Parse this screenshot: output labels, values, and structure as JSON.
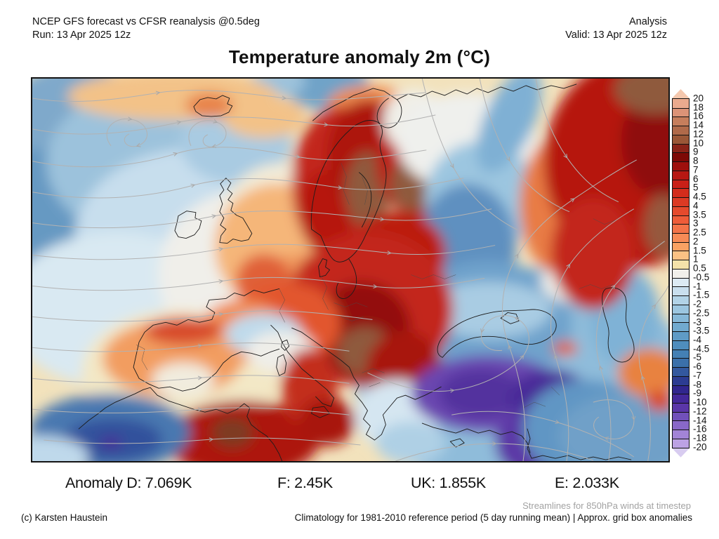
{
  "header": {
    "model_line": "NCEP GFS forecast vs CFSR reanalysis @0.5deg",
    "run_line": "Run: 13 Apr 2025 12z",
    "mode": "Analysis",
    "valid_line": "Valid: 13 Apr 2025 12z"
  },
  "title": "Temperature anomaly 2m (°C)",
  "anomaly_stats": [
    "Anomaly D: 7.069K",
    "F: 2.45K",
    "UK: 1.855K",
    "E: 2.033K"
  ],
  "colorbar": {
    "unit": "°C",
    "labels": [
      "20",
      "18",
      "16",
      "14",
      "12",
      "10",
      "9",
      "8",
      "7",
      "6",
      "5",
      "4.5",
      "4",
      "3.5",
      "3",
      "2.5",
      "2",
      "1.5",
      "1",
      "0.5",
      "-0.5",
      "-1",
      "-1.5",
      "-2",
      "-2.5",
      "-3",
      "-3.5",
      "-4",
      "-4.5",
      "-5",
      "-6",
      "-7",
      "-8",
      "-9",
      "-10",
      "-12",
      "-14",
      "-16",
      "-18",
      "-20"
    ],
    "segment_colors": [
      "#EBAA8E",
      "#DC9377",
      "#C67E5C",
      "#B06A4A",
      "#9A5737",
      "#8A2318",
      "#7D0906",
      "#9E100C",
      "#B71712",
      "#C92017",
      "#D32C1C",
      "#DC3A24",
      "#E54A2D",
      "#EE5C39",
      "#F37348",
      "#F78B56",
      "#FAA263",
      "#FBC184",
      "#F4E2AA",
      "#F1F0EB",
      "#DCEAF3",
      "#C9DFEE",
      "#B2D3E7",
      "#9CC6E0",
      "#86B8D8",
      "#71AACF",
      "#5F9BC6",
      "#4F8DBD",
      "#4480B4",
      "#3B70AA",
      "#33589E",
      "#2C3C92",
      "#31268E",
      "#44289A",
      "#5A36A8",
      "#7150BA",
      "#8968C8",
      "#A284D6",
      "#BCA2E4"
    ],
    "arrow_top_color": "#F5C8AE",
    "arrow_bottom_color": "#D8CCF0"
  },
  "footer": {
    "streamlines_note": "Streamlines for 850hPa winds at timestep",
    "copyright": "(c) Karsten Haustein",
    "climatology_note": "Climatology for 1981-2010 reference period (5 day running mean) | Approx. grid box anomalies"
  }
}
